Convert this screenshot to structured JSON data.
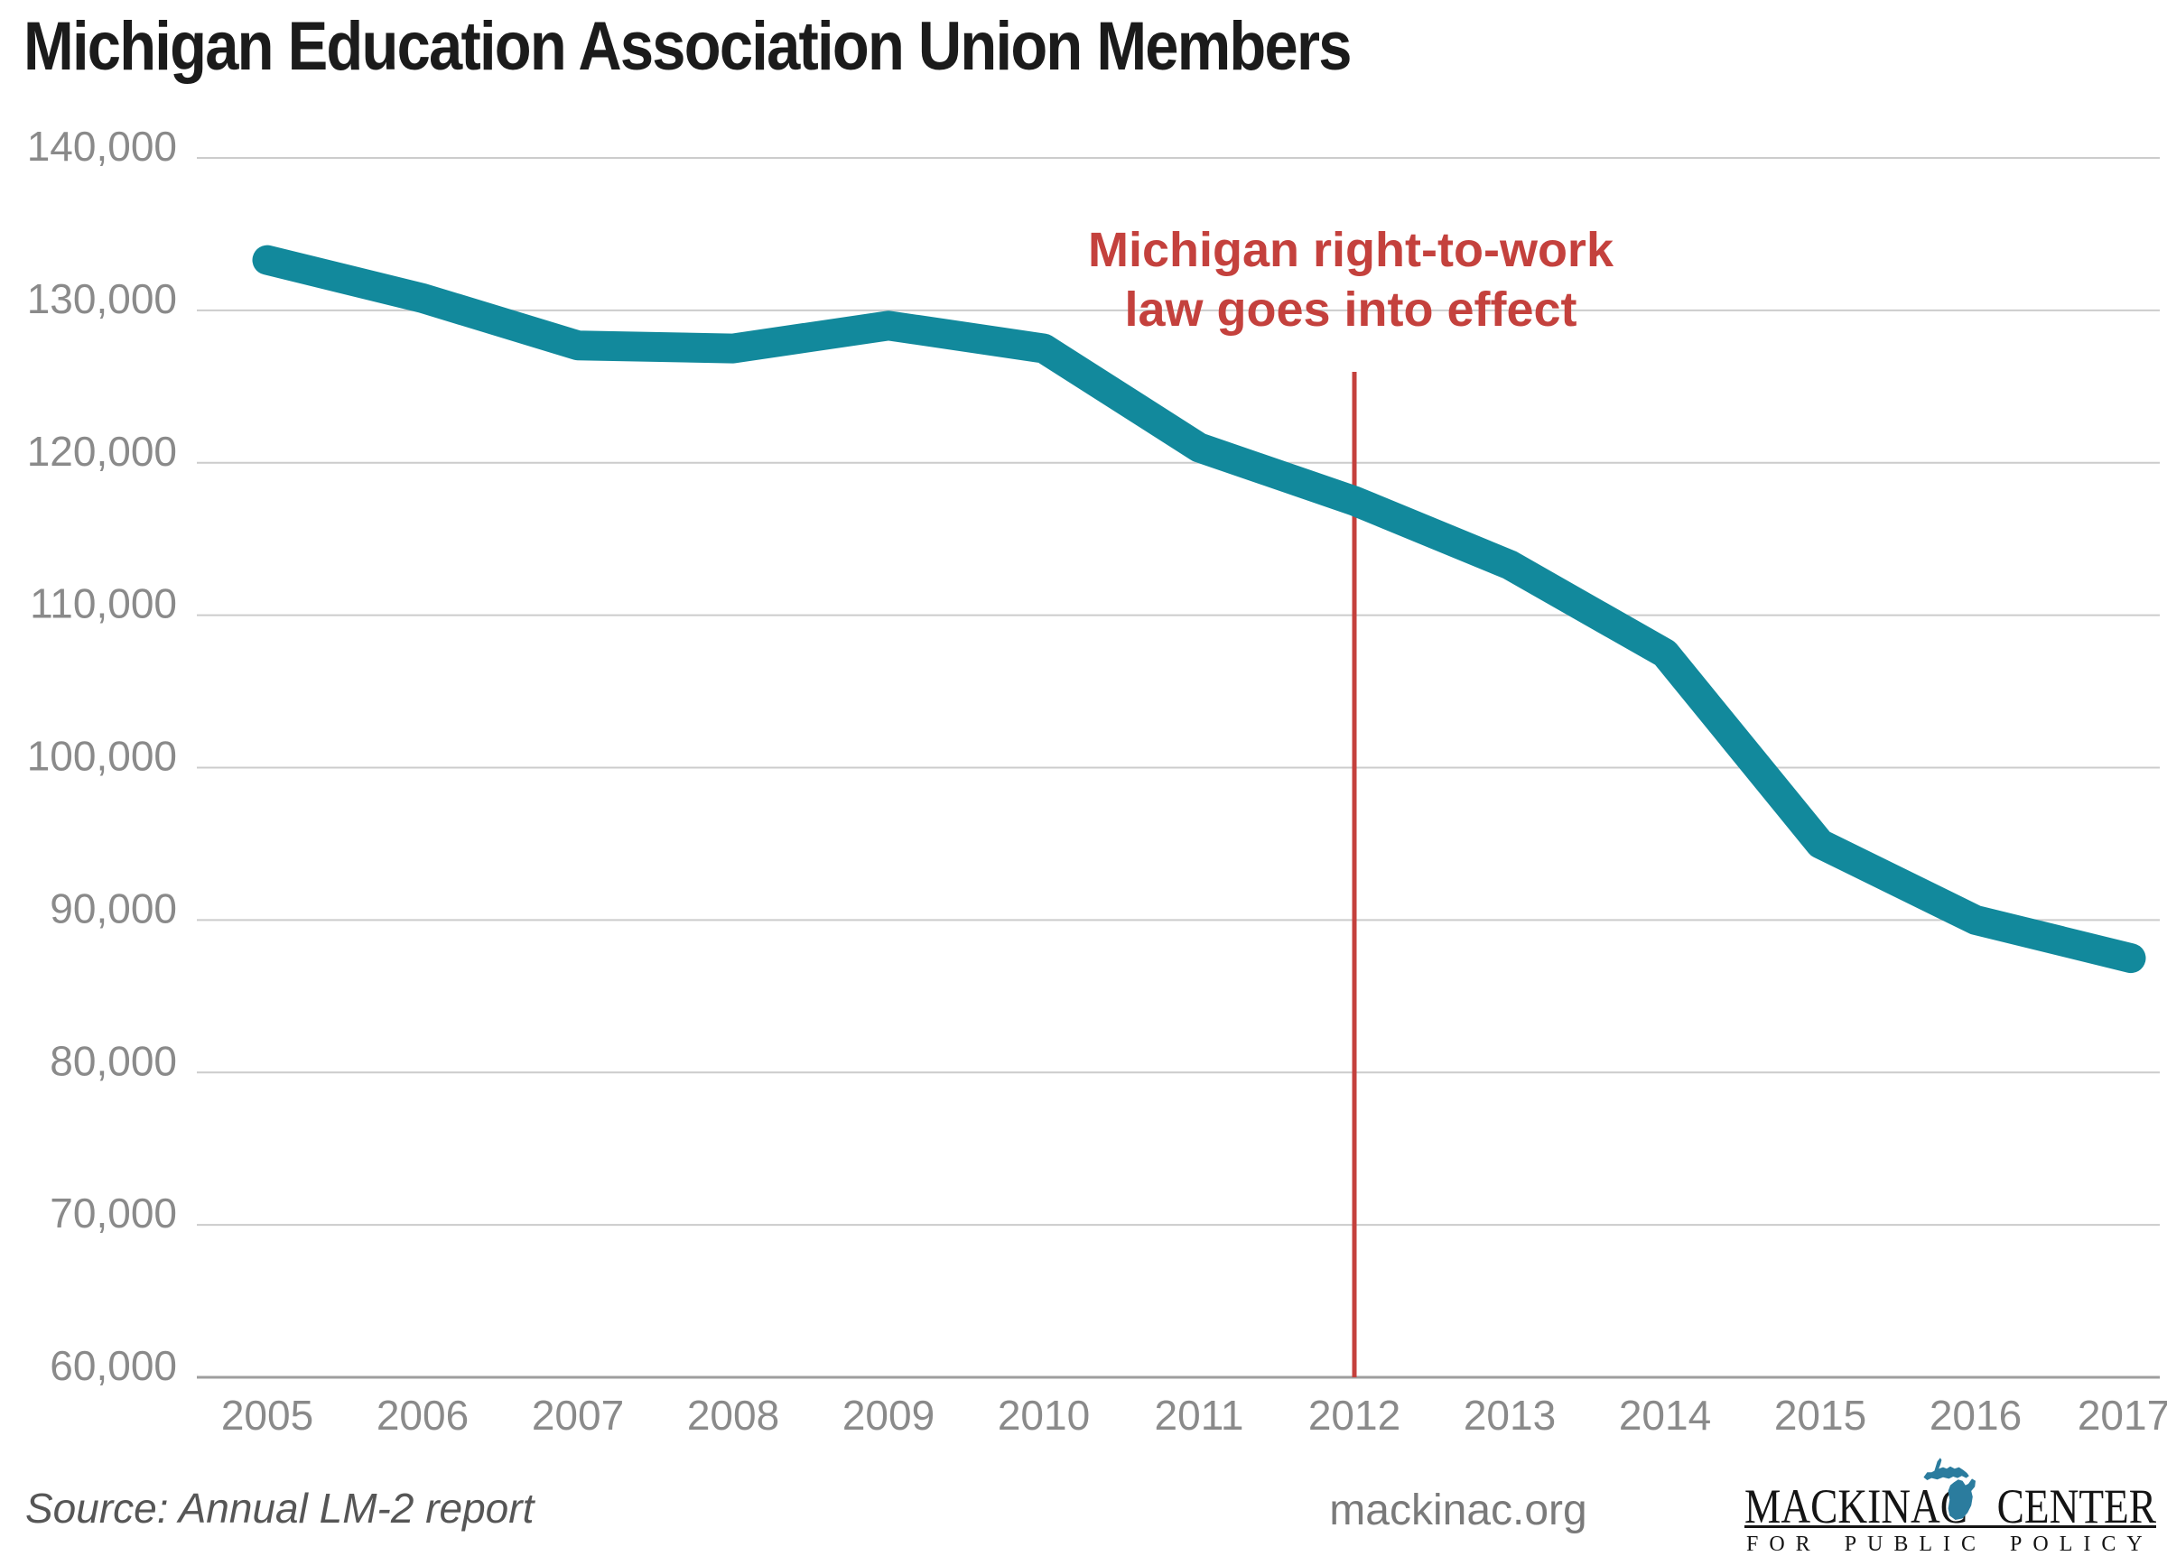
{
  "title": "Michigan Education Association Union Members",
  "annotation": {
    "line1": "Michigan right-to-work",
    "line2": "law goes into effect",
    "at_year": 2012,
    "color": "#c4413d"
  },
  "footer": {
    "source": "Source: Annual LM-2 report",
    "website": "mackinac.org"
  },
  "logo": {
    "org_word_left": "MACKINAC",
    "org_word_right": "CENTER",
    "tagline": "FOR PUBLIC POLICY",
    "michigan_icon_color": "#2b7c9e",
    "text_color": "#141414"
  },
  "colors": {
    "line": "#12899c",
    "annotation_red": "#c4413d",
    "gridline": "#cccccc",
    "axis_line": "#9e9e9e",
    "tick_label": "#8a8a8a",
    "title_text": "#1b1b1b"
  },
  "chart_data": {
    "type": "line",
    "title": "Michigan Education Association Union Members",
    "x": [
      2005,
      2006,
      2007,
      2008,
      2009,
      2010,
      2011,
      2012,
      2013,
      2014,
      2015,
      2016,
      2017
    ],
    "x_tick_labels": [
      "2005",
      "2006",
      "2007",
      "2008",
      "2009",
      "2010",
      "2011",
      "2012",
      "2013",
      "2014",
      "2015",
      "2016",
      "2017"
    ],
    "series": [
      {
        "name": "MEA union members",
        "values": [
          133300,
          130800,
          127700,
          127500,
          129000,
          127500,
          121000,
          117500,
          113300,
          107500,
          95000,
          90000,
          87500
        ]
      }
    ],
    "ylim": [
      60000,
      140000
    ],
    "y_ticks": [
      140000,
      130000,
      120000,
      110000,
      100000,
      90000,
      80000,
      70000,
      60000
    ],
    "y_tick_labels": [
      "140,000",
      "130,000",
      "120,000",
      "110,000",
      "100,000",
      "90,000",
      "80,000",
      "70,000",
      "60,000"
    ],
    "xlabel": "",
    "ylabel": "",
    "grid": "horizontal",
    "legend": "none",
    "vline_x": 2012,
    "vline_color": "#c4413d",
    "line_color": "#12899c"
  }
}
